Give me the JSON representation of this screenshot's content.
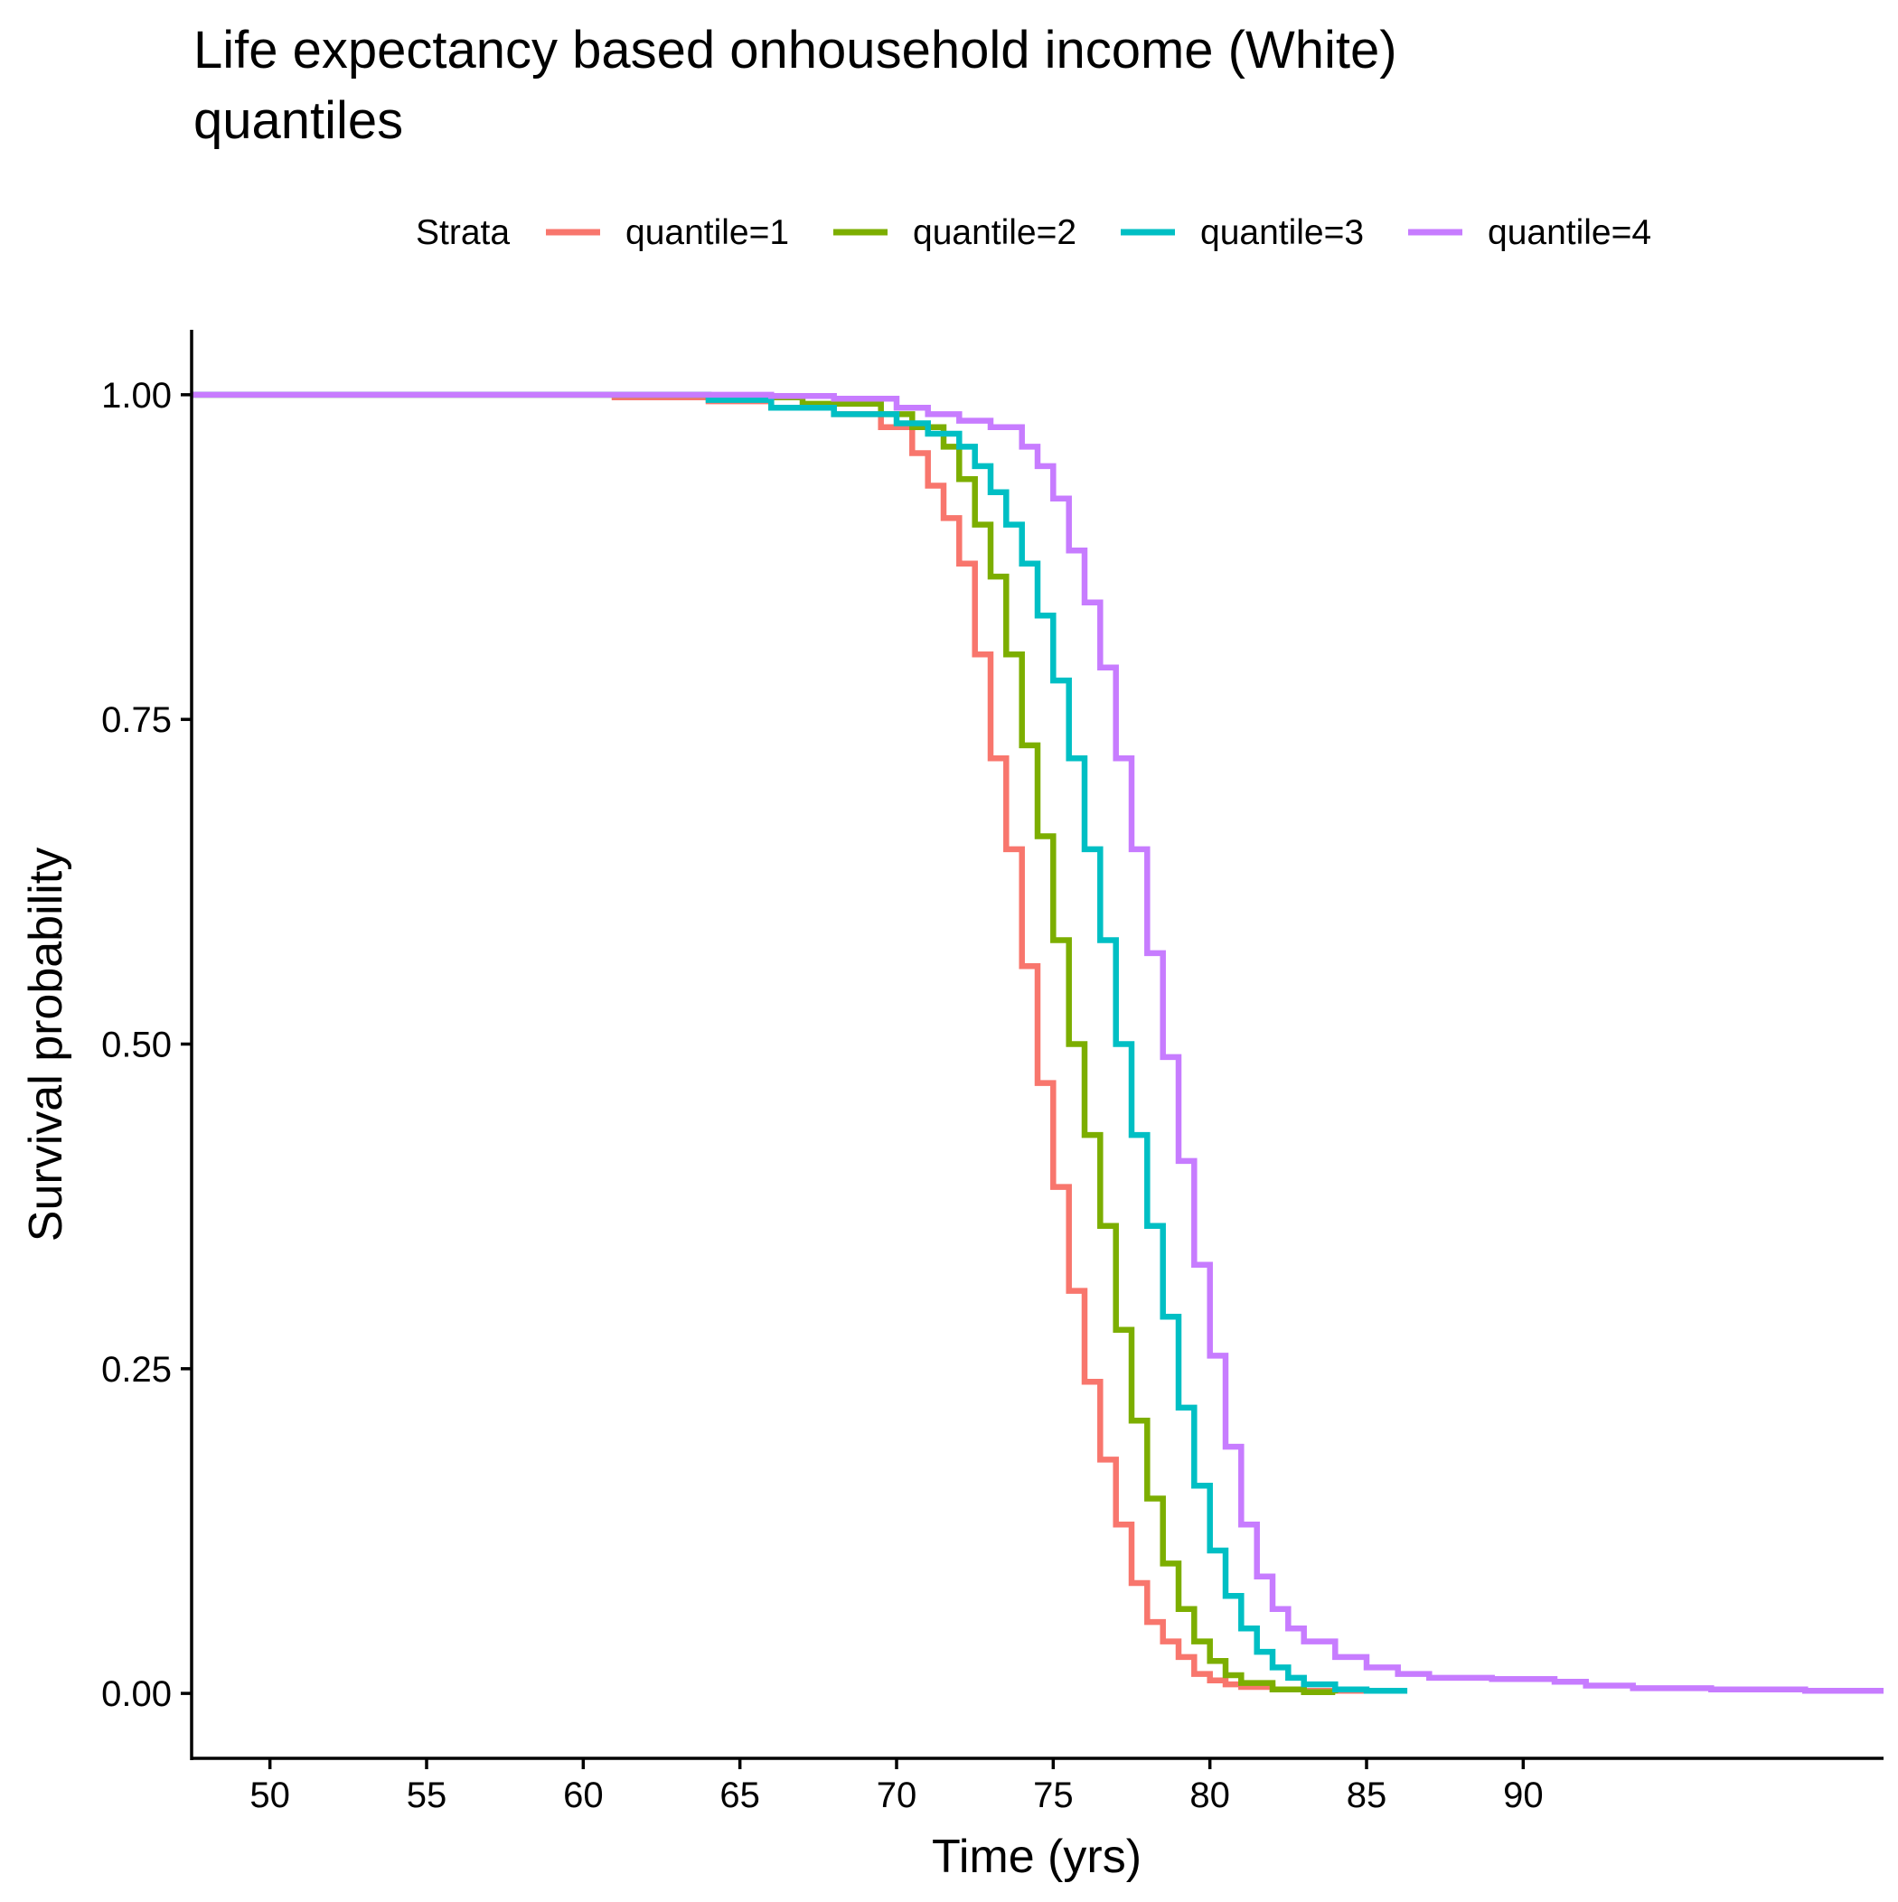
{
  "chart_data": {
    "type": "line",
    "title": "Life expectancy based onhousehold income (White) quantiles",
    "title_lines": [
      "Life expectancy based onhousehold income (White)",
      "quantiles"
    ],
    "xlabel": "Time (yrs)",
    "ylabel": "Survival probability",
    "xlim": [
      47.5,
      101.5
    ],
    "ylim": [
      -0.05,
      1.05
    ],
    "xticks": [
      50,
      55,
      60,
      65,
      70,
      75,
      80,
      85,
      90
    ],
    "xtick_labels": [
      "50",
      "55",
      "60",
      "65",
      "70",
      "75",
      "80",
      "85",
      "90"
    ],
    "yticks": [
      0,
      0.25,
      0.5,
      0.75,
      1.0
    ],
    "ytick_labels": [
      "0.00",
      "0.25",
      "0.50",
      "0.75",
      "1.00"
    ],
    "legend": {
      "title": "Strata",
      "position": "top"
    },
    "grid": false,
    "series": [
      {
        "name": "quantile=1",
        "color": "#F8766D",
        "x": [
          47.5,
          61,
          64,
          66,
          68,
          69.5,
          70.5,
          71,
          71.5,
          72,
          72.5,
          73,
          73.5,
          74,
          74.5,
          75,
          75.5,
          76,
          76.5,
          77,
          77.5,
          78,
          78.5,
          79,
          79.5,
          80,
          80.5,
          81,
          82,
          83,
          84,
          85
        ],
        "y": [
          1.0,
          0.998,
          0.995,
          0.99,
          0.985,
          0.975,
          0.955,
          0.93,
          0.905,
          0.87,
          0.8,
          0.72,
          0.65,
          0.56,
          0.47,
          0.39,
          0.31,
          0.24,
          0.18,
          0.13,
          0.085,
          0.055,
          0.04,
          0.028,
          0.015,
          0.01,
          0.007,
          0.005,
          0.003,
          0.002,
          0.002,
          0.002
        ]
      },
      {
        "name": "quantile=2",
        "color": "#7CAE00",
        "x": [
          47.5,
          64,
          67,
          69.5,
          70.5,
          71.5,
          72,
          72.5,
          73,
          73.5,
          74,
          74.5,
          75,
          75.5,
          76,
          76.5,
          77,
          77.5,
          78,
          78.5,
          79,
          79.5,
          80,
          80.5,
          81,
          82,
          83,
          84
        ],
        "y": [
          1.0,
          0.998,
          0.993,
          0.985,
          0.975,
          0.96,
          0.935,
          0.9,
          0.86,
          0.8,
          0.73,
          0.66,
          0.58,
          0.5,
          0.43,
          0.36,
          0.28,
          0.21,
          0.15,
          0.1,
          0.065,
          0.04,
          0.025,
          0.014,
          0.008,
          0.003,
          0.001,
          0.0
        ]
      },
      {
        "name": "quantile=3",
        "color": "#00BFC4",
        "x": [
          47.5,
          64,
          66,
          68,
          70,
          71,
          72,
          72.5,
          73,
          73.5,
          74,
          74.5,
          75,
          75.5,
          76,
          76.5,
          77,
          77.5,
          78,
          78.5,
          79,
          79.5,
          80,
          80.5,
          81,
          81.5,
          82,
          82.5,
          83,
          84,
          85,
          86.3
        ],
        "y": [
          1.0,
          0.996,
          0.99,
          0.985,
          0.978,
          0.97,
          0.96,
          0.945,
          0.925,
          0.9,
          0.87,
          0.83,
          0.78,
          0.72,
          0.65,
          0.58,
          0.5,
          0.43,
          0.36,
          0.29,
          0.22,
          0.16,
          0.11,
          0.075,
          0.05,
          0.032,
          0.02,
          0.012,
          0.007,
          0.003,
          0.002,
          0.002
        ]
      },
      {
        "name": "quantile=4",
        "color": "#C77CFF",
        "x": [
          47.5,
          66,
          68,
          70,
          71,
          72,
          73,
          74,
          74.5,
          75,
          75.5,
          76,
          76.5,
          77,
          77.5,
          78,
          78.5,
          79,
          79.5,
          80,
          80.5,
          81,
          81.5,
          82,
          82.5,
          83,
          84,
          85,
          86,
          87,
          89,
          91,
          92,
          93.5,
          96,
          99,
          101.5
        ],
        "y": [
          1.0,
          0.999,
          0.997,
          0.99,
          0.985,
          0.98,
          0.975,
          0.96,
          0.945,
          0.92,
          0.88,
          0.84,
          0.79,
          0.72,
          0.65,
          0.57,
          0.49,
          0.41,
          0.33,
          0.26,
          0.19,
          0.13,
          0.09,
          0.065,
          0.05,
          0.04,
          0.028,
          0.02,
          0.015,
          0.012,
          0.011,
          0.009,
          0.006,
          0.004,
          0.003,
          0.002,
          0.002
        ]
      }
    ]
  }
}
